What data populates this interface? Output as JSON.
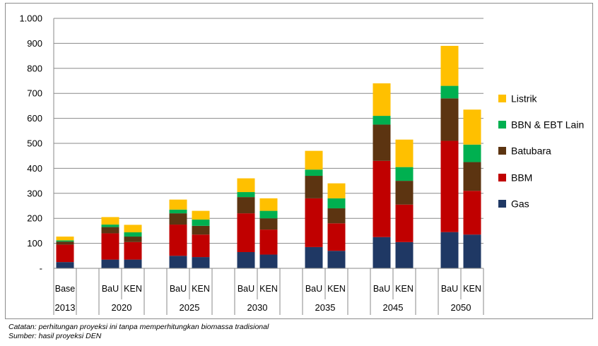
{
  "chart_data": {
    "type": "bar",
    "stacked": true,
    "title": "",
    "xlabel": "",
    "ylabel": "",
    "ylim": [
      0,
      1000
    ],
    "yticks": [
      {
        "value": 0,
        "label": "-"
      },
      {
        "value": 100,
        "label": "100"
      },
      {
        "value": 200,
        "label": "200"
      },
      {
        "value": 300,
        "label": "300"
      },
      {
        "value": 400,
        "label": "400"
      },
      {
        "value": 500,
        "label": "500"
      },
      {
        "value": 600,
        "label": "600"
      },
      {
        "value": 700,
        "label": "700"
      },
      {
        "value": 800,
        "label": "800"
      },
      {
        "value": 900,
        "label": "900"
      },
      {
        "value": 1000,
        "label": "1.000"
      }
    ],
    "grid": true,
    "legend_position": "right",
    "groups": [
      {
        "year": "2013",
        "bars": [
          "Base"
        ]
      },
      {
        "year": "2020",
        "bars": [
          "BaU",
          "KEN"
        ]
      },
      {
        "year": "2025",
        "bars": [
          "BaU",
          "KEN"
        ]
      },
      {
        "year": "2030",
        "bars": [
          "BaU",
          "KEN"
        ]
      },
      {
        "year": "2035",
        "bars": [
          "BaU",
          "KEN"
        ]
      },
      {
        "year": "2045",
        "bars": [
          "BaU",
          "KEN"
        ]
      },
      {
        "year": "2050",
        "bars": [
          "BaU",
          "KEN"
        ]
      }
    ],
    "series": [
      {
        "name": "Gas",
        "color": "#1f3864",
        "values": [
          25,
          35,
          35,
          50,
          45,
          65,
          55,
          85,
          70,
          125,
          105,
          145,
          135
        ]
      },
      {
        "name": "BBM",
        "color": "#c00000",
        "values": [
          70,
          105,
          70,
          125,
          90,
          155,
          100,
          195,
          110,
          305,
          150,
          365,
          175
        ]
      },
      {
        "name": "Batubara",
        "color": "#5c3411",
        "values": [
          12,
          25,
          22,
          45,
          35,
          65,
          45,
          90,
          60,
          145,
          95,
          170,
          115
        ]
      },
      {
        "name": "BBN & EBT Lain",
        "color": "#00b050",
        "values": [
          5,
          10,
          17,
          15,
          25,
          20,
          30,
          25,
          40,
          35,
          55,
          50,
          70
        ]
      },
      {
        "name": "Listrik",
        "color": "#ffc000",
        "values": [
          15,
          30,
          30,
          40,
          35,
          55,
          50,
          75,
          60,
          130,
          110,
          160,
          140
        ]
      }
    ],
    "legend_order": [
      "Listrik",
      "BBN & EBT Lain",
      "Batubara",
      "BBM",
      "Gas"
    ]
  },
  "notes": {
    "note_1": "Catatan: perhitungan proyeksi ini tanpa memperhitungkan biomassa tradisional",
    "note_2": "Sumber: hasil proyeksi DEN"
  }
}
